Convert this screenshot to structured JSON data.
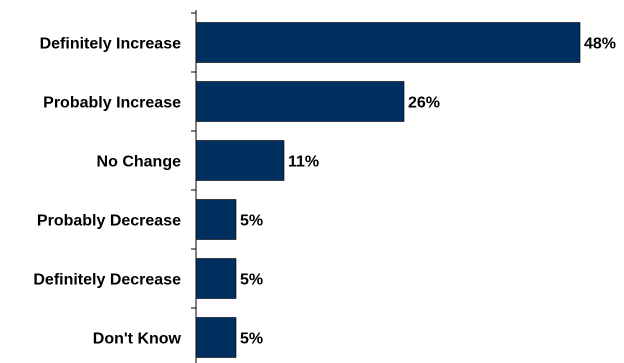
{
  "chart_data": {
    "type": "bar",
    "orientation": "horizontal",
    "categories": [
      "Definitely Increase",
      "Probably Increase",
      "No Change",
      "Probably Decrease",
      "Definitely Decrease",
      "Don't Know"
    ],
    "values": [
      48,
      26,
      11,
      5,
      5,
      5
    ],
    "value_labels": [
      "48%",
      "26%",
      "11%",
      "5%",
      "5%",
      "5%"
    ],
    "xlim": [
      0,
      48
    ],
    "grid": false,
    "legend": "none",
    "bar_color": "#00305F",
    "title": "",
    "xlabel": "",
    "ylabel": ""
  }
}
